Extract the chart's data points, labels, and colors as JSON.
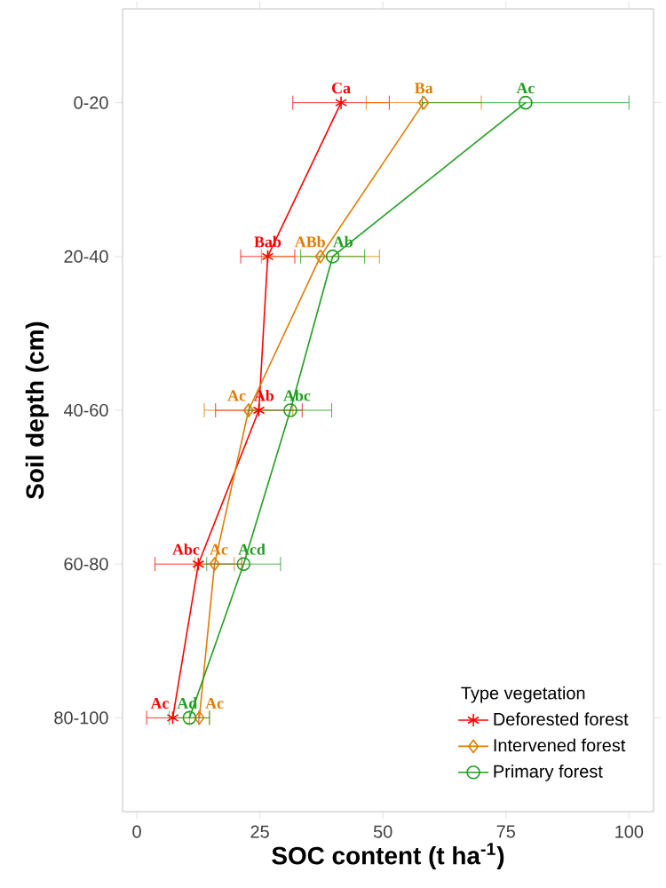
{
  "chart_data": {
    "type": "line",
    "orientation": "horizontal",
    "xlabel": "SOC content (t ha$^{-1}$)",
    "ylabel": "Soil depth (cm)",
    "categories": [
      "0-20",
      "20-40",
      "40-60",
      "60-80",
      "80-100"
    ],
    "xlim": [
      -2.9,
      105
    ],
    "xticks": [
      0,
      25,
      50,
      75,
      100
    ],
    "grid": false,
    "legend": "bottom right",
    "legend_title": "Type  vegetation",
    "series": [
      {
        "name": "Deforested forest",
        "color": "#ff0000",
        "marker": "cross",
        "values": [
          41.5,
          26.6,
          24.8,
          12.5,
          7.3
        ],
        "errors": [
          9.8,
          5.5,
          8.8,
          8.8,
          5.3
        ],
        "value_labels": [
          "Ca",
          "Bab",
          "Ab",
          "Abc",
          "Ac"
        ]
      },
      {
        "name": "Intervened forest",
        "color": "#e07b00",
        "marker": "diamond",
        "values": [
          58.3,
          37.3,
          22.7,
          15.8,
          12.7
        ],
        "errors": [
          11.7,
          12,
          9,
          4,
          2
        ],
        "value_labels": [
          "Ba",
          "ABb",
          "Ac",
          "Ac",
          "Ac"
        ]
      },
      {
        "name": "Primary forest",
        "color": "#1f9e1f",
        "marker": "circle",
        "values": [
          79,
          39.8,
          31.2,
          21.7,
          10.7
        ],
        "errors": [
          21,
          6.5,
          8.4,
          7.5,
          4.1
        ],
        "value_labels": [
          "Ac",
          "Ab",
          "Abc",
          "Acd",
          "Ad"
        ]
      }
    ]
  }
}
